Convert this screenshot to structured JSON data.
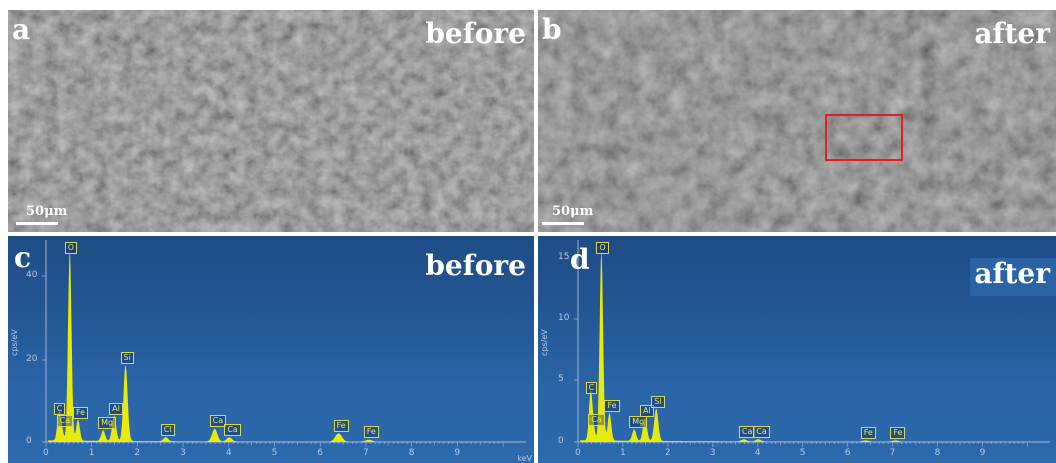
{
  "panels": {
    "a": {
      "letter": "a",
      "state": "before",
      "scale": "50μm"
    },
    "b": {
      "letter": "b",
      "state": "after",
      "scale": "50μm"
    },
    "c": {
      "letter": "c",
      "state": "before",
      "ylabel": "cps/eV",
      "xunit": "keV",
      "yticks": [
        "40",
        "20",
        "0"
      ],
      "xticks": [
        "0",
        "1",
        "2",
        "3",
        "4",
        "5",
        "6",
        "7",
        "8",
        "9"
      ],
      "peaks": [
        {
          "label": "C",
          "e": 0.28,
          "h": 0.06
        },
        {
          "label": "Ca",
          "e": 0.34,
          "h": 0.03
        },
        {
          "label": "O",
          "e": 0.52,
          "h": 0.45
        },
        {
          "label": "Fe",
          "e": 0.7,
          "h": 0.05
        },
        {
          "label": "Mg",
          "e": 1.25,
          "h": 0.025
        },
        {
          "label": "Al",
          "e": 1.49,
          "h": 0.06
        },
        {
          "label": "Si",
          "e": 1.74,
          "h": 0.18
        },
        {
          "label": "Cl",
          "e": 2.62,
          "h": 0.01
        },
        {
          "label": "Ca",
          "e": 3.69,
          "h": 0.03
        },
        {
          "label": "Ca",
          "e": 4.01,
          "h": 0.01
        },
        {
          "label": "Fe",
          "e": 6.4,
          "h": 0.02
        },
        {
          "label": "Fe",
          "e": 7.06,
          "h": 0.005
        }
      ]
    },
    "d": {
      "letter": "d",
      "state": "after",
      "ylabel": "cps/eV",
      "yticks": [
        "15",
        "10",
        "5",
        "0"
      ],
      "xticks": [
        "0",
        "1",
        "2",
        "3",
        "4",
        "5",
        "6",
        "7",
        "8",
        "9"
      ],
      "peaks": [
        {
          "label": "C",
          "e": 0.28,
          "h": 0.1
        },
        {
          "label": "Ca",
          "e": 0.34,
          "h": 0.03
        },
        {
          "label": "O",
          "e": 0.52,
          "h": 0.41
        },
        {
          "label": "Fe",
          "e": 0.7,
          "h": 0.06
        },
        {
          "label": "Mg",
          "e": 1.25,
          "h": 0.025
        },
        {
          "label": "Al",
          "e": 1.49,
          "h": 0.05
        },
        {
          "label": "Si",
          "e": 1.74,
          "h": 0.07
        },
        {
          "label": "Ca",
          "e": 3.69,
          "h": 0.005
        },
        {
          "label": "Ca",
          "e": 4.01,
          "h": 0.005
        },
        {
          "label": "Fe",
          "e": 6.4,
          "h": 0.003
        },
        {
          "label": "Fe",
          "e": 7.06,
          "h": 0.003
        }
      ]
    }
  },
  "colors": {
    "spectrum": "#f2f200",
    "roi": "#e02020",
    "eds_bg": "#2a64a6"
  }
}
